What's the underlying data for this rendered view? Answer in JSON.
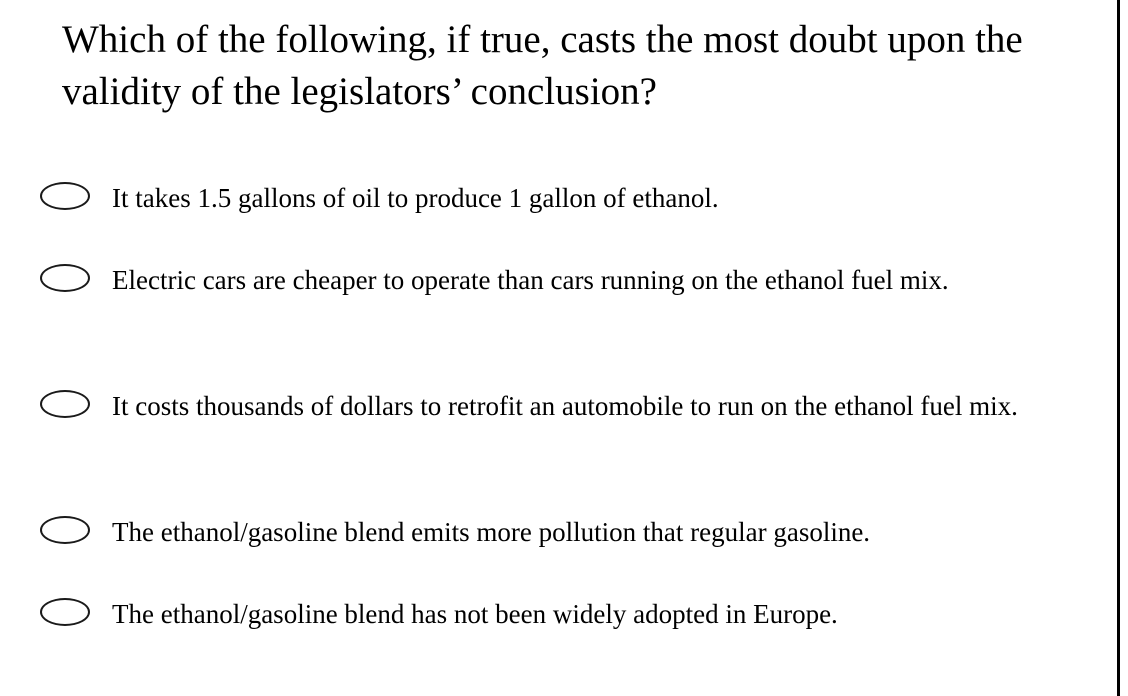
{
  "question": {
    "text": "Which of the following, if true, casts the most doubt upon the validity of the legislators’ conclusion?"
  },
  "options": [
    {
      "label": "It takes 1.5 gallons of oil to produce 1 gallon of ethanol."
    },
    {
      "label": "Electric cars are cheaper to operate than cars running on the ethanol fuel mix."
    },
    {
      "label": "It costs thousands of dollars to retrofit an automobile to run on the ethanol fuel mix."
    },
    {
      "label": "The ethanol/gasoline blend emits more pollution that regular gasoline."
    },
    {
      "label": "The ethanol/gasoline blend has not been widely adopted in Europe."
    }
  ],
  "icons": {
    "radio": "radio-unselected-icon"
  },
  "colors": {
    "background": "#ffffff",
    "text": "#000000",
    "border": "#000000"
  }
}
